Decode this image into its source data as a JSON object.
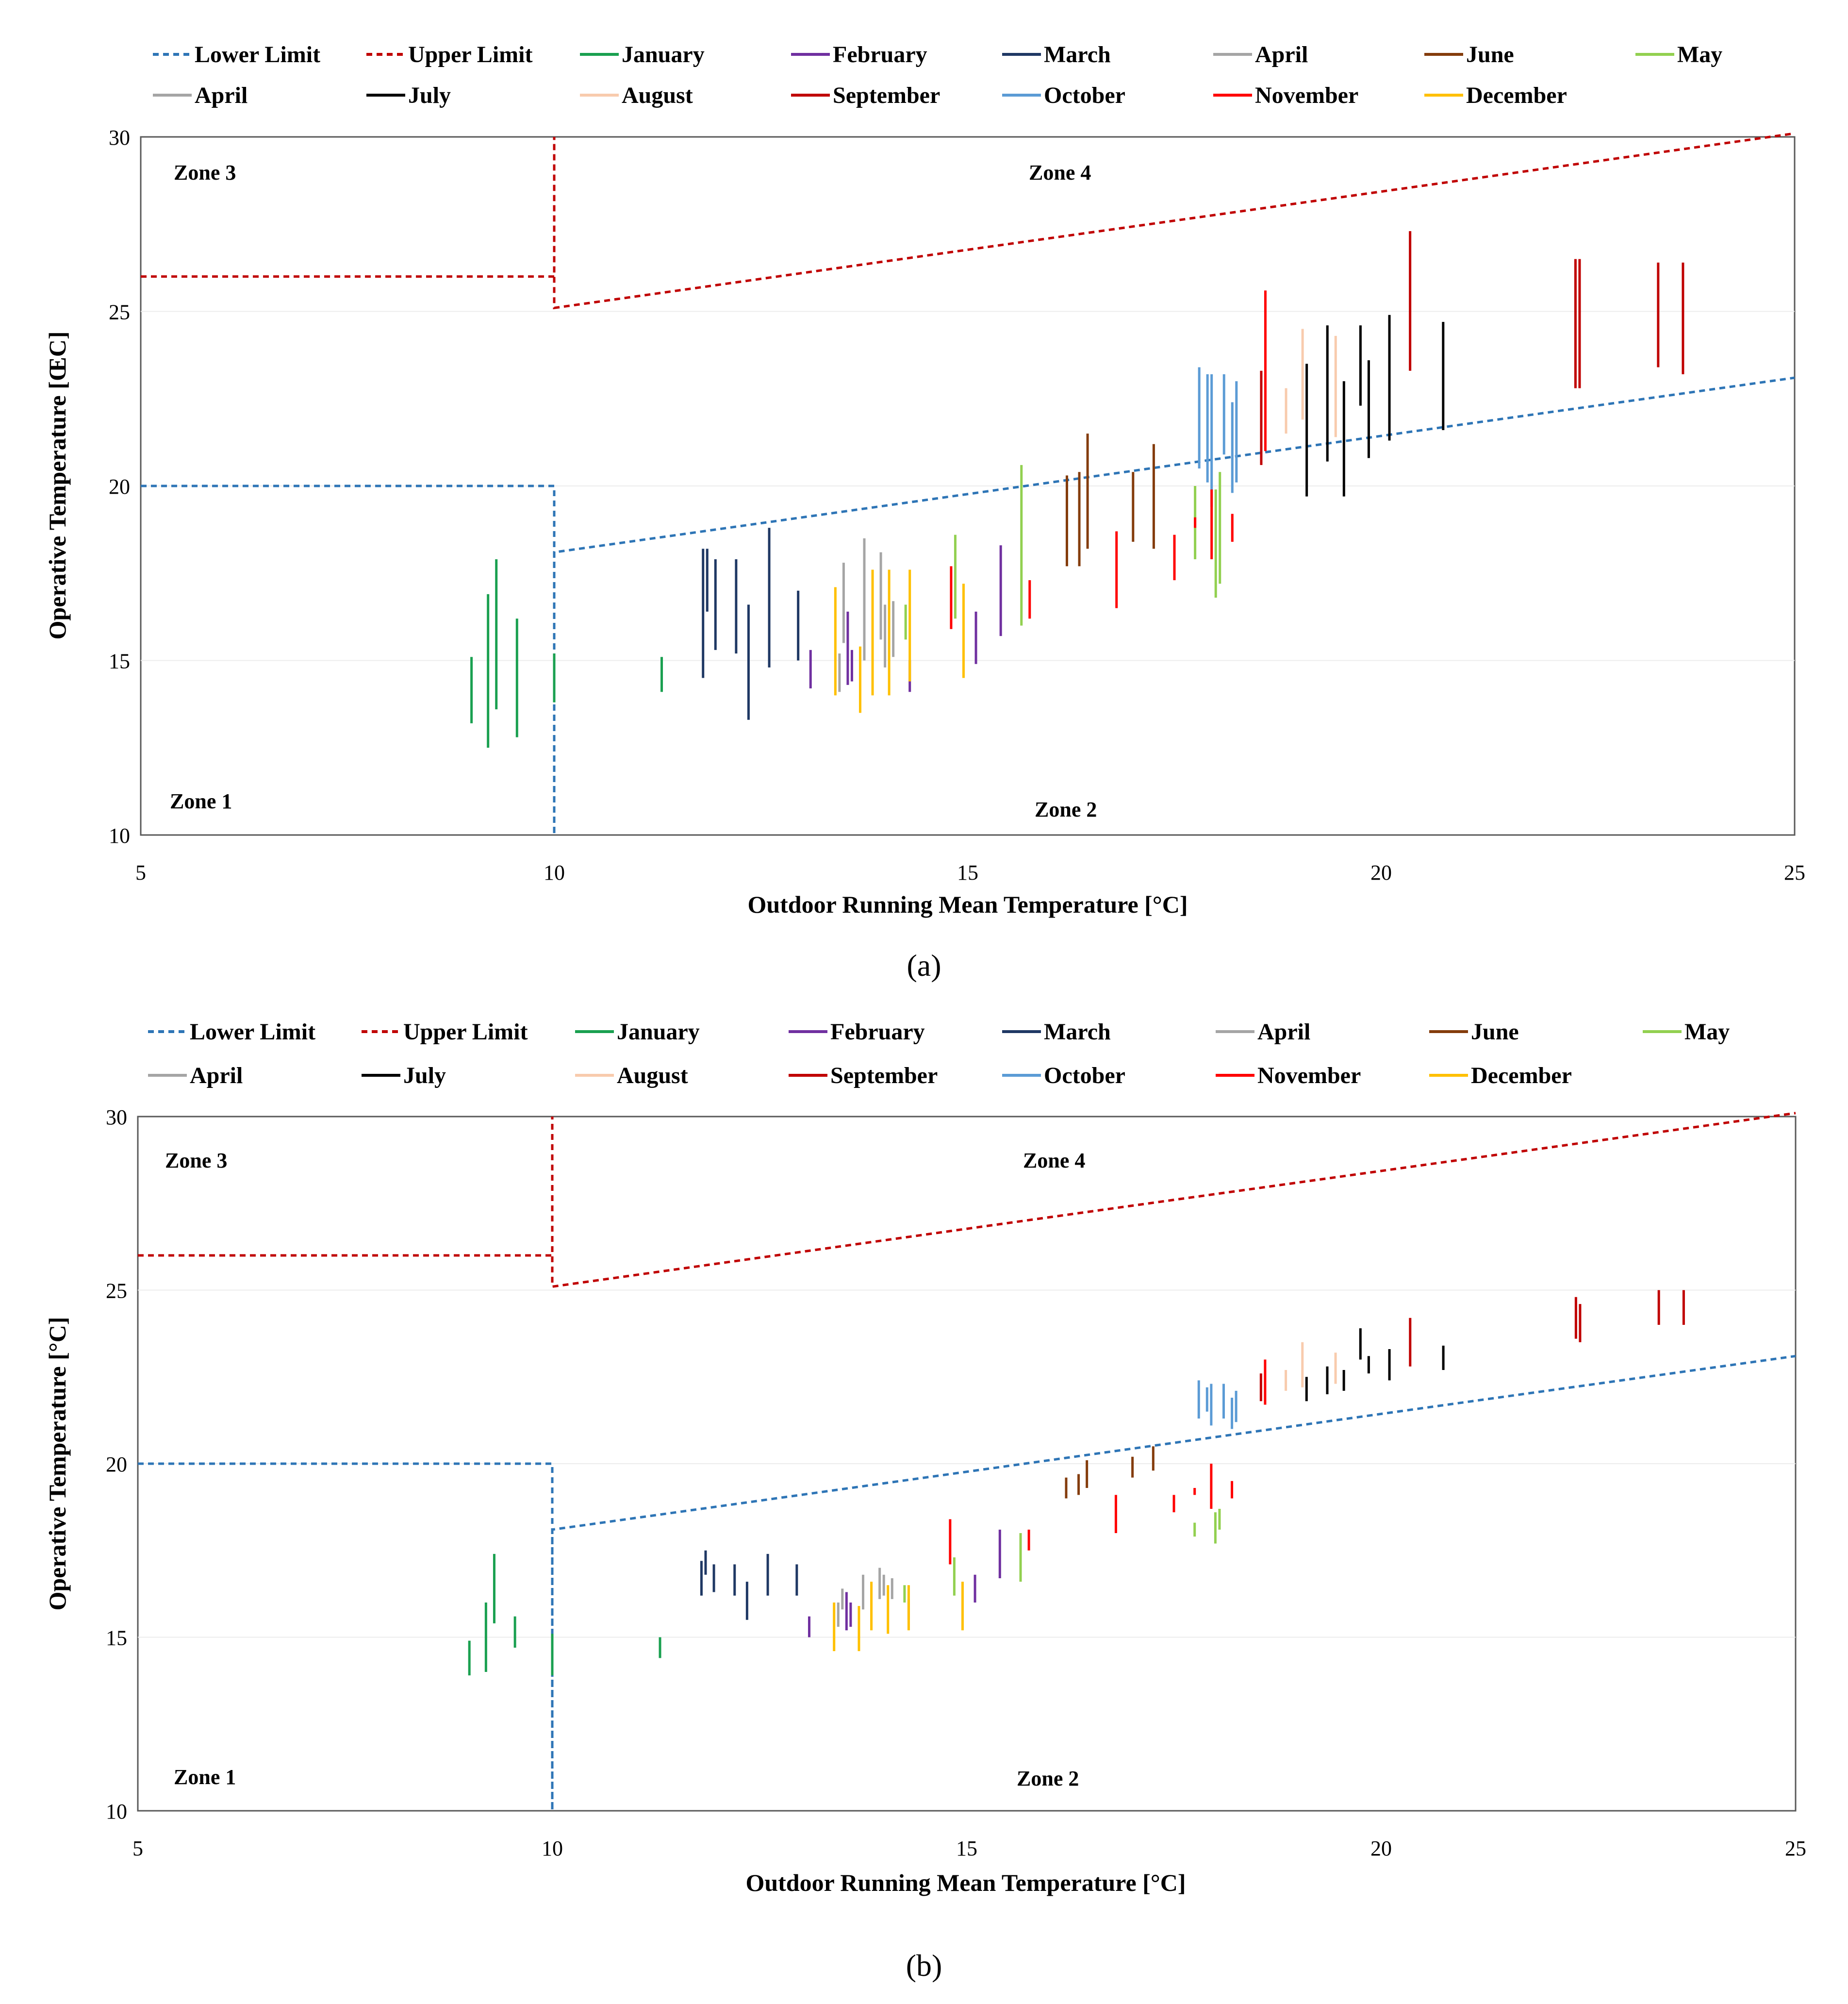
{
  "colors": {
    "lower_limit": "#2e75b6",
    "upper_limit": "#c00000",
    "axis": "#595959",
    "grid": "#ececec",
    "January": "#1aa050",
    "February": "#7030a0",
    "March": "#1f3864",
    "April": "#a5a5a5",
    "June": "#843c0c",
    "May": "#92d050",
    "April2": "#a5a5a5",
    "July": "#000000",
    "August": "#f8cbad",
    "September": "#c00000",
    "October": "#5b9bd5",
    "November": "#ff0000",
    "December": "#ffc000"
  },
  "legend": [
    {
      "label": "Lower Limit",
      "color_key": "lower_limit",
      "dashed": true
    },
    {
      "label": "Upper Limit",
      "color_key": "upper_limit",
      "dashed": true
    },
    {
      "label": "January",
      "color_key": "January"
    },
    {
      "label": "February",
      "color_key": "February"
    },
    {
      "label": "March",
      "color_key": "March"
    },
    {
      "label": "April",
      "color_key": "April"
    },
    {
      "label": "June",
      "color_key": "June"
    },
    {
      "label": "May",
      "color_key": "May"
    },
    {
      "label": "April",
      "color_key": "April2"
    },
    {
      "label": "July",
      "color_key": "July"
    },
    {
      "label": "August",
      "color_key": "August"
    },
    {
      "label": "September",
      "color_key": "September"
    },
    {
      "label": "October",
      "color_key": "October"
    },
    {
      "label": "November",
      "color_key": "November"
    },
    {
      "label": "December",
      "color_key": "December"
    }
  ],
  "zones": [
    "Zone 1",
    "Zone 2",
    "Zone 3",
    "Zone 4"
  ],
  "chart_data": [
    {
      "panel": "a",
      "caption": "(a)",
      "type": "scatter",
      "xlabel": "Outdoor Running Mean Temperature [°C]",
      "ylabel": "Operative Temperature [ŒC]",
      "xlim": [
        5,
        25
      ],
      "ylim": [
        10,
        30
      ],
      "xticks": [
        "5",
        "10",
        "15",
        "20",
        "25"
      ],
      "yticks": [
        "10",
        "15",
        "20",
        "25",
        "30"
      ],
      "limits": {
        "lower": [
          [
            5,
            20
          ],
          [
            10,
            20
          ],
          [
            10,
            10
          ],
          [
            10,
            18.1
          ],
          [
            25,
            23.1
          ]
        ],
        "upper": [
          [
            5,
            26
          ],
          [
            10,
            26
          ],
          [
            10,
            30
          ],
          [
            10,
            25.1
          ],
          [
            25,
            30.1
          ]
        ]
      },
      "series": [
        {
          "name": "January",
          "color_key": "January",
          "ranges": [
            [
              9.0,
              13.2,
              15.1
            ],
            [
              9.2,
              12.5,
              16.9
            ],
            [
              9.3,
              13.6,
              17.9
            ],
            [
              9.55,
              12.8,
              16.2
            ],
            [
              10.0,
              13.8,
              15.2
            ],
            [
              11.3,
              14.1,
              15.1
            ]
          ]
        },
        {
          "name": "February",
          "color_key": "February",
          "ranges": [
            [
              13.1,
              14.2,
              15.3
            ],
            [
              13.55,
              14.3,
              16.4
            ],
            [
              13.6,
              14.4,
              15.3
            ],
            [
              14.3,
              14.1,
              15.0
            ],
            [
              15.1,
              14.9,
              16.4
            ],
            [
              15.4,
              15.7,
              18.3
            ]
          ]
        },
        {
          "name": "March",
          "color_key": "March",
          "ranges": [
            [
              11.8,
              14.5,
              18.2
            ],
            [
              11.85,
              16.4,
              18.2
            ],
            [
              11.95,
              15.3,
              17.9
            ],
            [
              12.2,
              15.2,
              17.9
            ],
            [
              12.35,
              13.3,
              16.6
            ],
            [
              12.6,
              14.8,
              18.8
            ],
            [
              12.95,
              15.0,
              17.0
            ]
          ]
        },
        {
          "name": "April",
          "color_key": "April",
          "ranges": [
            [
              13.45,
              14.1,
              15.2
            ],
            [
              13.5,
              15.5,
              17.8
            ],
            [
              13.75,
              15.0,
              18.5
            ],
            [
              13.95,
              15.6,
              18.1
            ],
            [
              14.0,
              14.8,
              16.6
            ],
            [
              14.1,
              15.1,
              16.7
            ]
          ]
        },
        {
          "name": "June",
          "color_key": "June",
          "ranges": [
            [
              16.2,
              17.7,
              20.3
            ],
            [
              16.35,
              17.7,
              20.4
            ],
            [
              16.45,
              18.2,
              21.5
            ],
            [
              17.0,
              18.4,
              20.4
            ],
            [
              17.25,
              18.2,
              21.2
            ]
          ]
        },
        {
          "name": "May",
          "color_key": "May",
          "ranges": [
            [
              14.25,
              15.6,
              16.6
            ],
            [
              14.85,
              16.2,
              18.6
            ],
            [
              15.65,
              16.0,
              20.6
            ],
            [
              17.75,
              17.9,
              20.0
            ],
            [
              18.0,
              16.8,
              19.9
            ],
            [
              18.05,
              17.2,
              20.4
            ]
          ]
        },
        {
          "name": "July",
          "color_key": "July",
          "ranges": [
            [
              19.1,
              19.7,
              23.5
            ],
            [
              19.35,
              20.7,
              24.6
            ],
            [
              19.55,
              19.7,
              23.0
            ],
            [
              19.75,
              22.3,
              24.6
            ],
            [
              19.85,
              20.8,
              23.6
            ],
            [
              20.1,
              21.3,
              24.9
            ],
            [
              20.75,
              21.6,
              24.7
            ]
          ]
        },
        {
          "name": "August",
          "color_key": "August",
          "ranges": [
            [
              18.85,
              21.5,
              22.8
            ],
            [
              19.05,
              21.9,
              24.5
            ],
            [
              19.45,
              21.4,
              24.3
            ]
          ]
        },
        {
          "name": "September",
          "color_key": "September",
          "ranges": [
            [
              18.55,
              20.6,
              23.3
            ],
            [
              20.35,
              23.3,
              27.3
            ],
            [
              22.35,
              22.8,
              26.5
            ],
            [
              22.4,
              22.8,
              26.5
            ],
            [
              23.35,
              23.4,
              26.4
            ],
            [
              23.65,
              23.2,
              26.4
            ]
          ]
        },
        {
          "name": "October",
          "color_key": "October",
          "ranges": [
            [
              17.8,
              20.5,
              23.4
            ],
            [
              17.9,
              20.1,
              23.2
            ],
            [
              17.95,
              19.4,
              23.2
            ],
            [
              18.1,
              20.9,
              23.2
            ],
            [
              18.2,
              19.8,
              22.4
            ],
            [
              18.25,
              20.1,
              23.0
            ]
          ]
        },
        {
          "name": "November",
          "color_key": "November",
          "ranges": [
            [
              14.8,
              15.9,
              17.7
            ],
            [
              15.75,
              16.2,
              17.3
            ],
            [
              16.8,
              16.5,
              18.7
            ],
            [
              17.5,
              17.3,
              18.6
            ],
            [
              17.75,
              18.8,
              19.1
            ],
            [
              17.95,
              17.9,
              19.9
            ],
            [
              18.2,
              18.4,
              19.2
            ],
            [
              18.6,
              21.0,
              25.6
            ]
          ]
        },
        {
          "name": "December",
          "color_key": "December",
          "ranges": [
            [
              13.4,
              14.0,
              17.1
            ],
            [
              13.7,
              13.5,
              15.4
            ],
            [
              13.85,
              14.0,
              17.6
            ],
            [
              14.05,
              14.0,
              17.6
            ],
            [
              14.3,
              14.4,
              17.6
            ],
            [
              14.95,
              14.5,
              17.2
            ]
          ]
        }
      ]
    },
    {
      "panel": "b",
      "caption": "(b)",
      "type": "scatter",
      "xlabel": "Outdoor Running Mean Temperature [°C]",
      "ylabel": "Operative Temperature [°C]",
      "xlim": [
        5,
        25
      ],
      "ylim": [
        10,
        30
      ],
      "xticks": [
        "5",
        "10",
        "15",
        "20",
        "25"
      ],
      "yticks": [
        "10",
        "15",
        "20",
        "25",
        "30"
      ],
      "limits": {
        "lower": [
          [
            5,
            20
          ],
          [
            10,
            20
          ],
          [
            10,
            10
          ],
          [
            10,
            18.1
          ],
          [
            25,
            23.1
          ]
        ],
        "upper": [
          [
            5,
            26
          ],
          [
            10,
            26
          ],
          [
            10,
            30
          ],
          [
            10,
            25.1
          ],
          [
            25,
            30.1
          ]
        ]
      },
      "series": [
        {
          "name": "January",
          "color_key": "January",
          "ranges": [
            [
              9.0,
              13.9,
              14.9
            ],
            [
              9.2,
              14.0,
              16.0
            ],
            [
              9.3,
              15.4,
              17.4
            ],
            [
              9.55,
              14.7,
              15.6
            ],
            [
              10.0,
              13.9,
              15.1
            ],
            [
              11.3,
              14.4,
              15.0
            ]
          ]
        },
        {
          "name": "February",
          "color_key": "February",
          "ranges": [
            [
              13.1,
              15.0,
              15.6
            ],
            [
              13.55,
              15.2,
              16.3
            ],
            [
              13.6,
              15.3,
              16.0
            ],
            [
              14.3,
              15.5,
              16.1
            ],
            [
              15.1,
              16.0,
              16.8
            ],
            [
              15.4,
              16.7,
              18.1
            ]
          ]
        },
        {
          "name": "March",
          "color_key": "March",
          "ranges": [
            [
              11.8,
              16.2,
              17.2
            ],
            [
              11.85,
              16.8,
              17.5
            ],
            [
              11.95,
              16.3,
              17.1
            ],
            [
              12.2,
              16.2,
              17.1
            ],
            [
              12.35,
              15.5,
              16.6
            ],
            [
              12.6,
              16.2,
              17.4
            ],
            [
              12.95,
              16.2,
              17.1
            ]
          ]
        },
        {
          "name": "April",
          "color_key": "April",
          "ranges": [
            [
              13.45,
              15.3,
              16.0
            ],
            [
              13.5,
              15.8,
              16.4
            ],
            [
              13.75,
              15.8,
              16.8
            ],
            [
              13.95,
              16.1,
              17.0
            ],
            [
              14.0,
              16.2,
              16.8
            ],
            [
              14.1,
              16.1,
              16.7
            ]
          ]
        },
        {
          "name": "June",
          "color_key": "June",
          "ranges": [
            [
              16.2,
              19.0,
              19.6
            ],
            [
              16.35,
              19.1,
              19.7
            ],
            [
              16.45,
              19.3,
              20.1
            ],
            [
              17.0,
              19.6,
              20.2
            ],
            [
              17.25,
              19.8,
              20.5
            ]
          ]
        },
        {
          "name": "May",
          "color_key": "May",
          "ranges": [
            [
              14.25,
              16.0,
              16.5
            ],
            [
              14.85,
              16.2,
              17.3
            ],
            [
              15.65,
              16.6,
              18.0
            ],
            [
              17.75,
              17.9,
              18.3
            ],
            [
              18.0,
              17.7,
              18.6
            ],
            [
              18.05,
              18.1,
              18.7
            ]
          ]
        },
        {
          "name": "July",
          "color_key": "July",
          "ranges": [
            [
              19.1,
              21.8,
              22.5
            ],
            [
              19.35,
              22.0,
              22.8
            ],
            [
              19.55,
              22.1,
              22.7
            ],
            [
              19.75,
              23.0,
              23.9
            ],
            [
              19.85,
              22.6,
              23.1
            ],
            [
              20.1,
              22.4,
              23.3
            ],
            [
              20.75,
              22.7,
              23.4
            ]
          ]
        },
        {
          "name": "August",
          "color_key": "August",
          "ranges": [
            [
              18.85,
              22.1,
              22.7
            ],
            [
              19.05,
              22.2,
              23.5
            ],
            [
              19.45,
              22.3,
              23.2
            ]
          ]
        },
        {
          "name": "September",
          "color_key": "September",
          "ranges": [
            [
              18.55,
              21.8,
              22.6
            ],
            [
              20.35,
              22.8,
              24.2
            ],
            [
              22.35,
              23.6,
              24.8
            ],
            [
              22.4,
              23.5,
              24.6
            ],
            [
              23.35,
              24.0,
              25.0
            ],
            [
              23.65,
              24.0,
              25.0
            ]
          ]
        },
        {
          "name": "October",
          "color_key": "October",
          "ranges": [
            [
              17.8,
              21.3,
              22.4
            ],
            [
              17.9,
              21.5,
              22.2
            ],
            [
              17.95,
              21.1,
              22.3
            ],
            [
              18.1,
              21.3,
              22.3
            ],
            [
              18.2,
              21.0,
              21.9
            ],
            [
              18.25,
              21.2,
              22.1
            ]
          ]
        },
        {
          "name": "November",
          "color_key": "November",
          "ranges": [
            [
              14.8,
              17.1,
              18.4
            ],
            [
              15.75,
              17.5,
              18.1
            ],
            [
              16.8,
              18.0,
              19.1
            ],
            [
              17.5,
              18.6,
              19.1
            ],
            [
              17.75,
              19.1,
              19.3
            ],
            [
              17.95,
              18.7,
              20.0
            ],
            [
              18.2,
              19.0,
              19.5
            ],
            [
              18.6,
              21.7,
              23.0
            ]
          ]
        },
        {
          "name": "December",
          "color_key": "December",
          "ranges": [
            [
              13.4,
              14.6,
              16.0
            ],
            [
              13.7,
              14.6,
              15.9
            ],
            [
              13.85,
              15.2,
              16.6
            ],
            [
              14.05,
              15.1,
              16.5
            ],
            [
              14.3,
              15.2,
              16.5
            ],
            [
              14.95,
              15.2,
              16.6
            ]
          ]
        }
      ]
    }
  ]
}
